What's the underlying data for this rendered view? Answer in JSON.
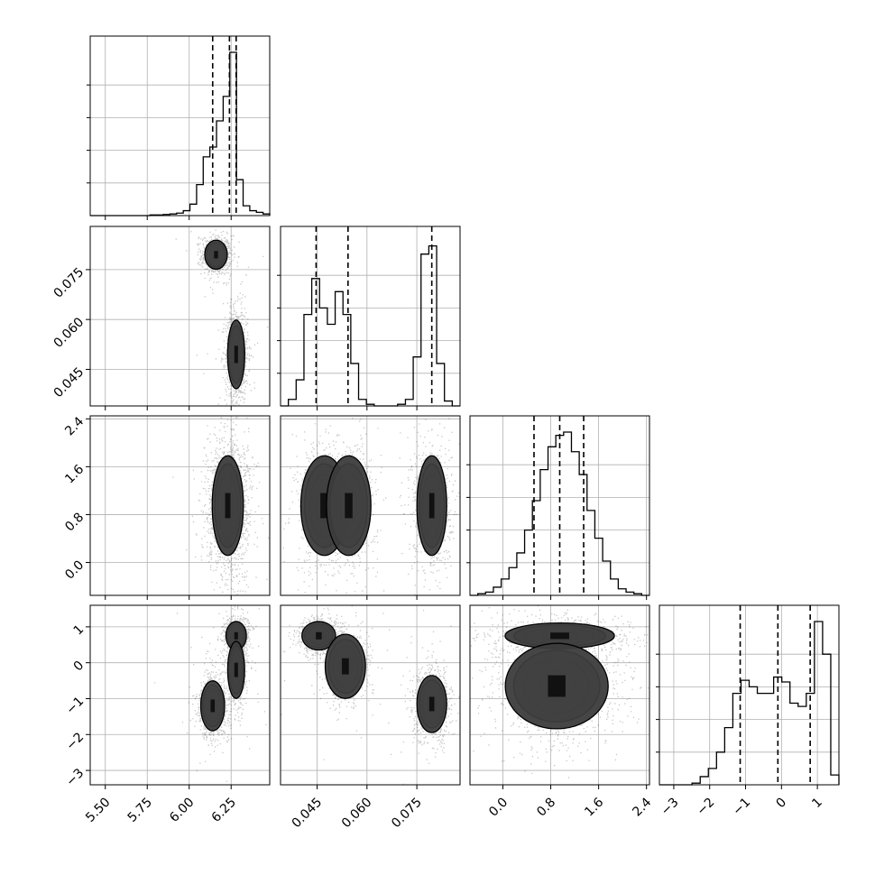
{
  "chart_data": {
    "type": "corner",
    "parameters": [
      {
        "range": [
          5.41,
          6.48
        ],
        "ticks": [
          5.5,
          5.75,
          6.0,
          6.25
        ],
        "tick_labels": [
          "5.50",
          "5.75",
          "6.00",
          "6.25"
        ],
        "quantiles": [
          6.14,
          6.24,
          6.28
        ],
        "hist": [
          0,
          0,
          0,
          0,
          0,
          0,
          0,
          0,
          0,
          0.004,
          0.004,
          0.007,
          0.01,
          0.015,
          0.03,
          0.07,
          0.19,
          0.36,
          0.42,
          0.58,
          0.73,
          1.0,
          0.22,
          0.06,
          0.03,
          0.02,
          0.01
        ]
      },
      {
        "range": [
          0.034,
          0.088
        ],
        "ticks": [
          0.045,
          0.06,
          0.075
        ],
        "tick_labels": [
          "0.045",
          "0.060",
          "0.075"
        ],
        "quantiles": [
          0.0447,
          0.0543,
          0.0795
        ],
        "hist": [
          0.0,
          0.04,
          0.16,
          0.56,
          0.78,
          0.6,
          0.5,
          0.7,
          0.56,
          0.26,
          0.04,
          0.01,
          0.0,
          0.0,
          0.0,
          0.01,
          0.04,
          0.3,
          0.93,
          0.98,
          0.26,
          0.03,
          0.0
        ]
      },
      {
        "range": [
          -0.55,
          2.45
        ],
        "ticks": [
          0.0,
          0.8,
          1.6,
          2.4
        ],
        "tick_labels": [
          "0.0",
          "0.8",
          "1.6",
          "2.4"
        ],
        "quantiles": [
          0.52,
          0.95,
          1.35
        ],
        "hist": [
          0.0,
          0.01,
          0.02,
          0.05,
          0.1,
          0.17,
          0.26,
          0.4,
          0.58,
          0.77,
          0.91,
          0.98,
          1.0,
          0.88,
          0.74,
          0.52,
          0.35,
          0.21,
          0.1,
          0.04,
          0.02,
          0.01,
          0.0
        ]
      },
      {
        "range": [
          -3.4,
          1.6
        ],
        "ticks": [
          -3,
          -2,
          -1,
          0,
          1
        ],
        "tick_labels": [
          "−3",
          "−2",
          "−1",
          "0",
          "1"
        ],
        "quantiles": [
          -1.15,
          -0.1,
          0.8
        ],
        "hist": [
          0.0,
          0.0,
          0.0,
          0.0,
          0.01,
          0.05,
          0.1,
          0.2,
          0.35,
          0.56,
          0.64,
          0.6,
          0.56,
          0.56,
          0.66,
          0.63,
          0.5,
          0.48,
          0.56,
          1.0,
          0.8,
          0.06
        ]
      }
    ],
    "blobs_2d": [
      {
        "row": 1,
        "col": 0,
        "blobs": [
          {
            "cx": 6.16,
            "cy": 0.0795,
            "sx": 0.033,
            "sy": 0.0022,
            "w": 0.42
          },
          {
            "cx": 6.28,
            "cy": 0.0495,
            "sx": 0.025,
            "sy": 0.0052,
            "w": 0.58
          }
        ]
      },
      {
        "row": 2,
        "col": 0,
        "blobs": [
          {
            "cx": 6.23,
            "cy": 0.95,
            "sx": 0.045,
            "sy": 0.42,
            "w": 1.0
          }
        ]
      },
      {
        "row": 2,
        "col": 1,
        "blobs": [
          {
            "cx": 0.0472,
            "cy": 0.95,
            "sx": 0.0035,
            "sy": 0.42,
            "w": 0.3
          },
          {
            "cx": 0.0545,
            "cy": 0.95,
            "sx": 0.0033,
            "sy": 0.42,
            "w": 0.28
          },
          {
            "cx": 0.0795,
            "cy": 0.95,
            "sx": 0.0022,
            "sy": 0.42,
            "w": 0.42
          }
        ]
      },
      {
        "row": 3,
        "col": 0,
        "blobs": [
          {
            "cx": 6.28,
            "cy": 0.75,
            "sx": 0.03,
            "sy": 0.2,
            "w": 0.36
          },
          {
            "cx": 6.28,
            "cy": -0.2,
            "sx": 0.025,
            "sy": 0.4,
            "w": 0.22
          },
          {
            "cx": 6.14,
            "cy": -1.2,
            "sx": 0.035,
            "sy": 0.35,
            "w": 0.42
          }
        ]
      },
      {
        "row": 3,
        "col": 1,
        "blobs": [
          {
            "cx": 0.0455,
            "cy": 0.75,
            "sx": 0.0025,
            "sy": 0.2,
            "w": 0.36
          },
          {
            "cx": 0.0535,
            "cy": -0.1,
            "sx": 0.003,
            "sy": 0.45,
            "w": 0.22
          },
          {
            "cx": 0.0795,
            "cy": -1.15,
            "sx": 0.0022,
            "sy": 0.4,
            "w": 0.42
          }
        ]
      },
      {
        "row": 3,
        "col": 2,
        "blobs": [
          {
            "cx": 0.95,
            "cy": 0.75,
            "sx": 0.45,
            "sy": 0.18,
            "w": 0.36
          },
          {
            "cx": 0.9,
            "cy": -0.65,
            "sx": 0.42,
            "sy": 0.6,
            "w": 0.64
          }
        ]
      }
    ],
    "grid": true
  }
}
